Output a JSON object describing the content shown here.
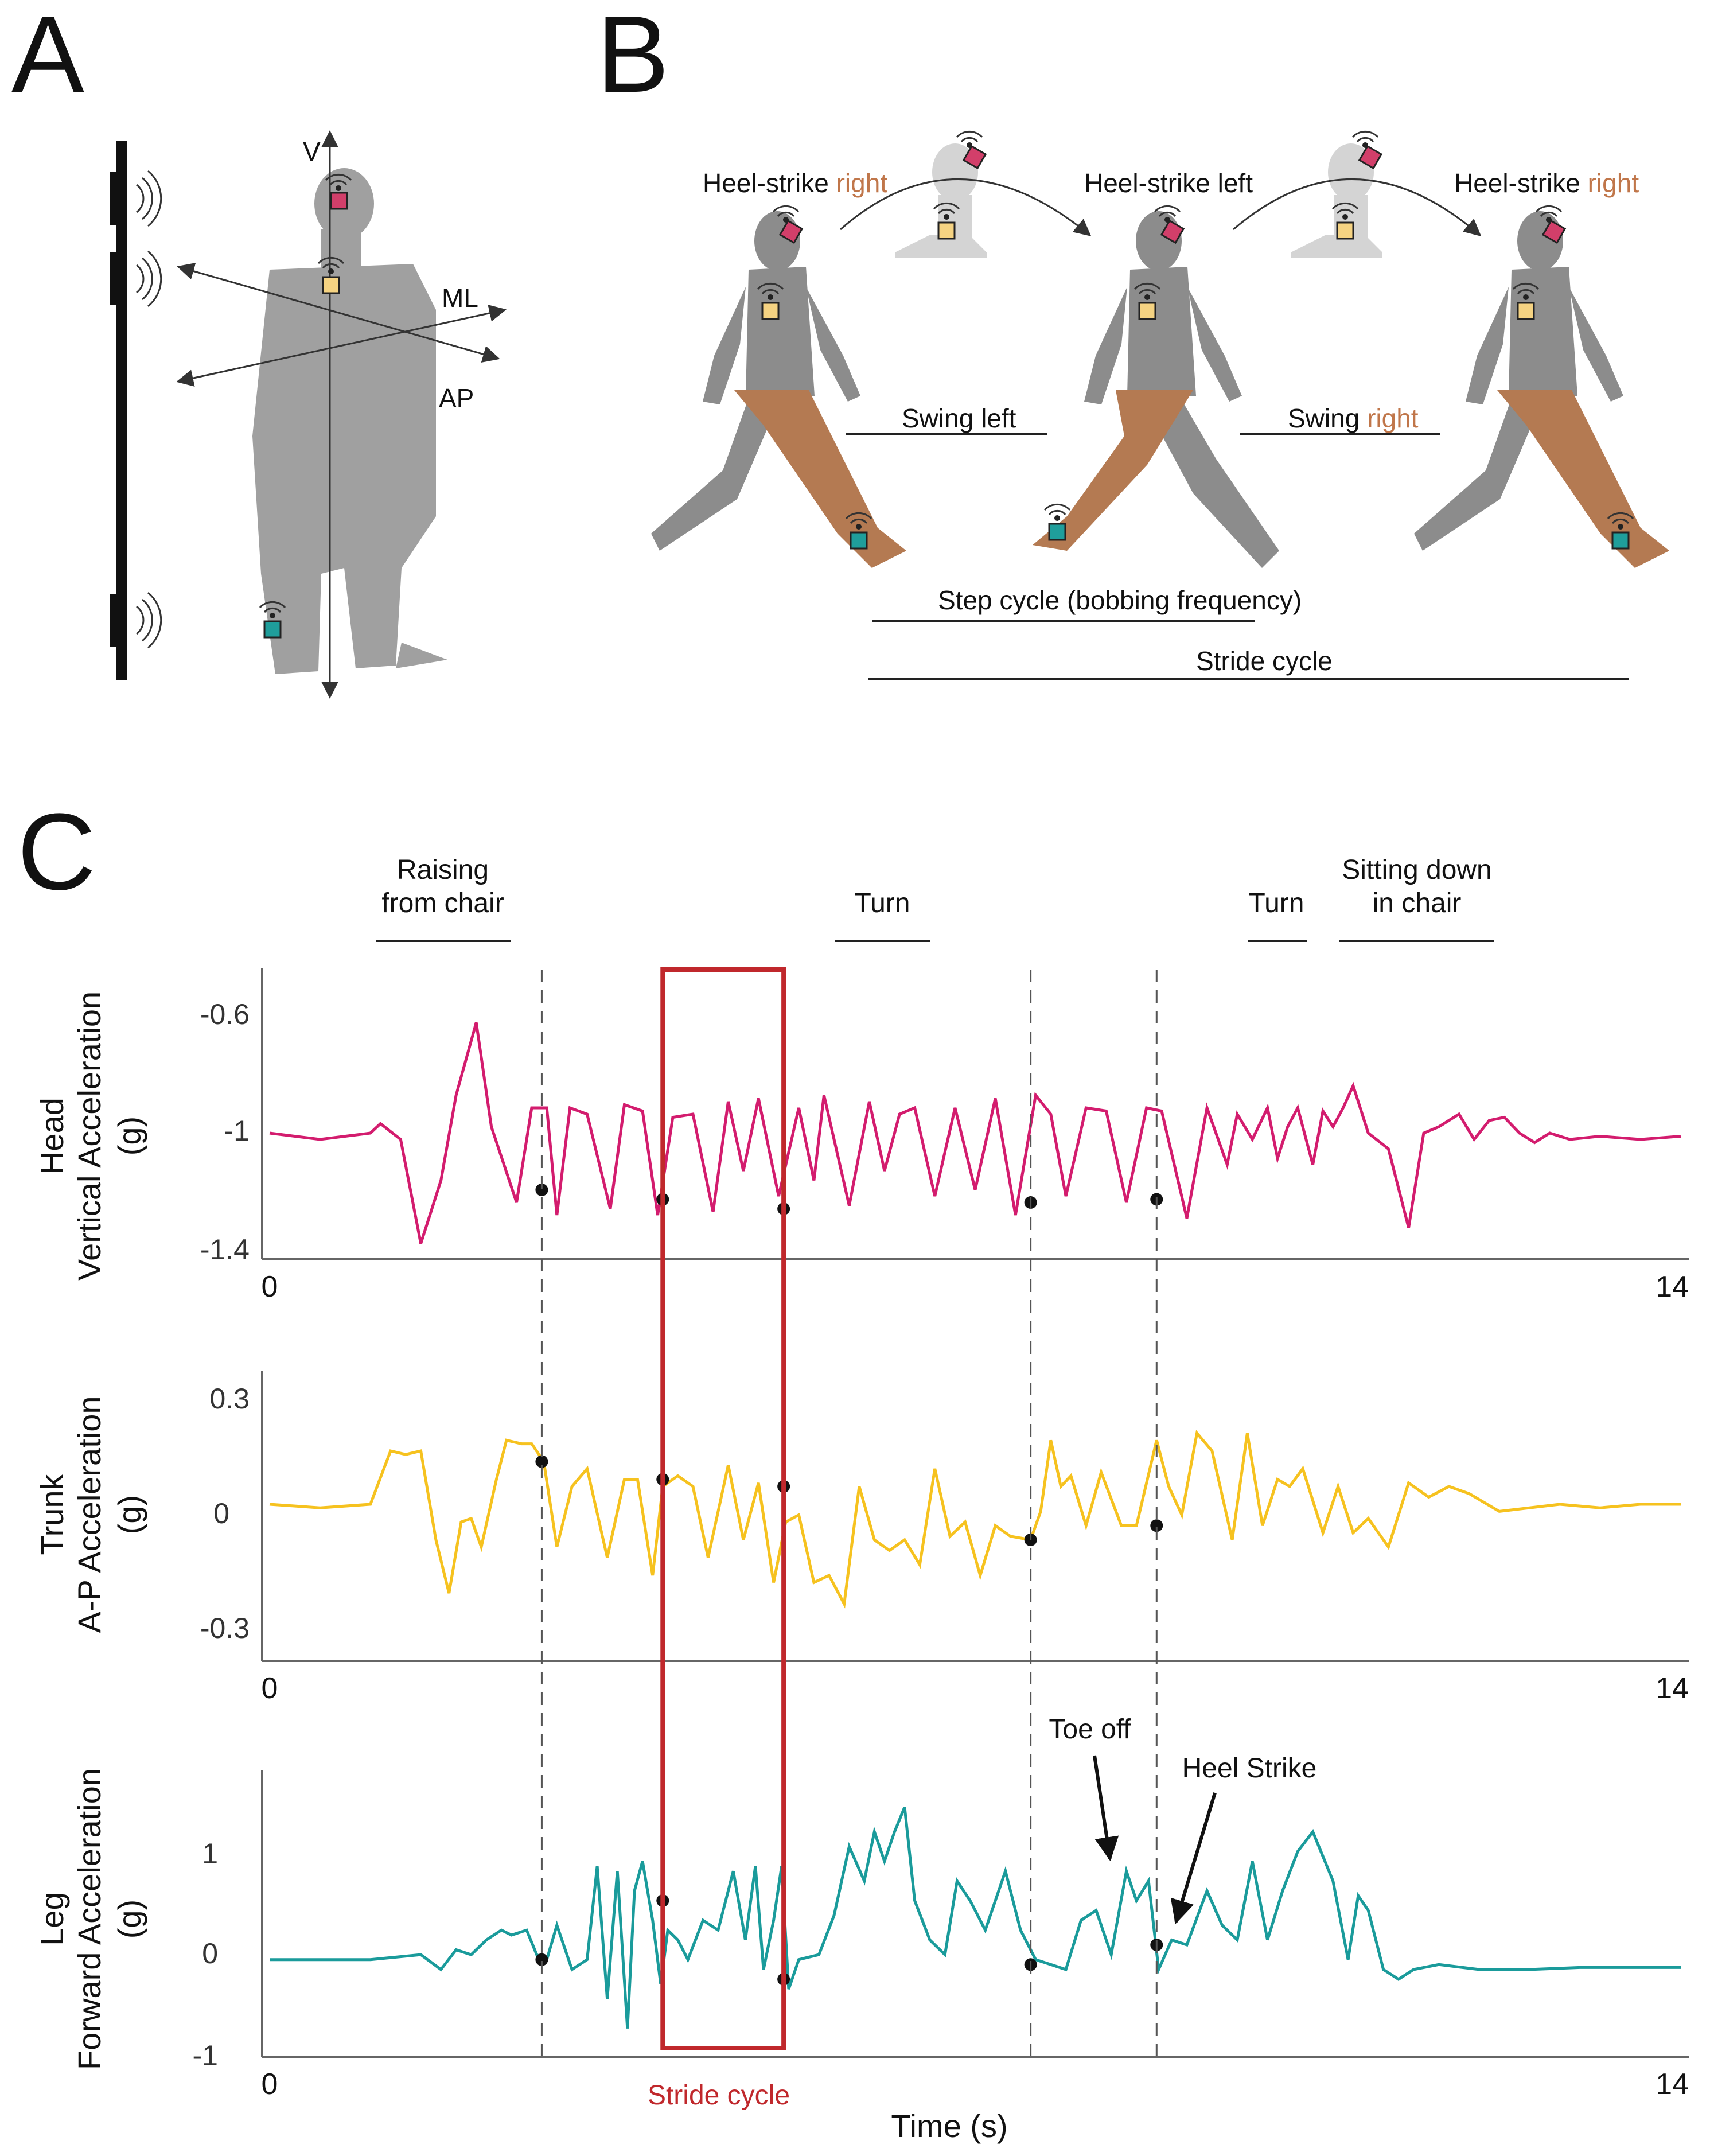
{
  "panels": {
    "a": "A",
    "b": "B",
    "c": "C"
  },
  "panel_a": {
    "axis_v": "V",
    "axis_ml": "ML",
    "axis_ap": "AP"
  },
  "panel_b": {
    "heel_strike_right_1": "Heel-strike ",
    "right_word_1": "right",
    "heel_strike_left": "Heel-strike left",
    "heel_strike_right_2": "Heel-strike ",
    "right_word_2": "right",
    "swing_left": "Swing left",
    "swing_right_prefix": "Swing ",
    "swing_right_word": "right",
    "step_cycle": "Step cycle (bobbing frequency)",
    "stride_cycle": "Stride cycle"
  },
  "annotations": {
    "raising_1": "Raising",
    "raising_2": "from chair",
    "turn_1": "Turn",
    "turn_2": "Turn",
    "sitting_1": "Sitting down",
    "sitting_2": "in chair",
    "toe_off": "Toe off",
    "heel_strike": "Heel Strike",
    "stride_cycle_box": "Stride cycle",
    "x_label": "Time (s)"
  },
  "colors": {
    "head": "#d31c6e",
    "trunk": "#f6c21f",
    "leg": "#1a9b9b",
    "stride_box": "#c0282c",
    "accent_text": "#c0764a",
    "sensor_head": "#d23f6a",
    "sensor_trunk": "#f5d382",
    "sensor_leg": "#1f9e9b"
  },
  "chart_data": [
    {
      "type": "line",
      "title": "Head",
      "ylabel": "Vertical Acceleration",
      "yunit": "(g)",
      "xlim": [
        0,
        14
      ],
      "ylim": [
        -1.4,
        -0.5
      ],
      "yticks": [
        "-0.6",
        "-1",
        "-1.4"
      ],
      "xticks": [
        "0",
        "14"
      ],
      "x": [
        0.0,
        0.5,
        1.0,
        1.1,
        1.3,
        1.5,
        1.7,
        1.85,
        2.05,
        2.2,
        2.45,
        2.6,
        2.75,
        2.85,
        2.98,
        3.15,
        3.38,
        3.52,
        3.7,
        3.85,
        4.0,
        4.2,
        4.4,
        4.55,
        4.7,
        4.85,
        5.05,
        5.25,
        5.4,
        5.5,
        5.75,
        5.95,
        6.1,
        6.25,
        6.4,
        6.6,
        6.8,
        7.0,
        7.2,
        7.4,
        7.6,
        7.75,
        7.9,
        8.1,
        8.3,
        8.5,
        8.7,
        8.85,
        9.1,
        9.3,
        9.5,
        9.6,
        9.75,
        9.9,
        10.0,
        10.1,
        10.2,
        10.35,
        10.45,
        10.55,
        10.65,
        10.75,
        10.9,
        11.1,
        11.3,
        11.45,
        11.6,
        11.8,
        11.95,
        12.1,
        12.25,
        12.4,
        12.55,
        12.7,
        12.9,
        13.2,
        13.6,
        14.0
      ],
      "values": [
        -1.0,
        -1.02,
        -1.0,
        -0.97,
        -1.02,
        -1.35,
        -1.15,
        -0.88,
        -0.65,
        -0.98,
        -1.22,
        -0.92,
        -0.92,
        -1.26,
        -0.92,
        -0.94,
        -1.24,
        -0.91,
        -0.93,
        -1.26,
        -0.95,
        -0.94,
        -1.25,
        -0.9,
        -1.12,
        -0.89,
        -1.2,
        -0.92,
        -1.15,
        -0.88,
        -1.23,
        -0.9,
        -1.12,
        -0.94,
        -0.92,
        -1.2,
        -0.92,
        -1.18,
        -0.89,
        -1.26,
        -0.88,
        -0.94,
        -1.2,
        -0.92,
        -0.93,
        -1.22,
        -0.92,
        -0.93,
        -1.27,
        -0.92,
        -1.1,
        -0.94,
        -1.02,
        -0.92,
        -1.08,
        -0.98,
        -0.92,
        -1.1,
        -0.93,
        -0.98,
        -0.92,
        -0.85,
        -1.0,
        -1.05,
        -1.3,
        -1.0,
        -0.98,
        -0.94,
        -1.02,
        -0.96,
        -0.95,
        -1.0,
        -1.03,
        -1.0,
        -1.02,
        -1.01,
        -1.02,
        -1.01
      ],
      "markers_x": [
        2.7,
        3.9,
        5.1,
        7.55,
        8.8
      ],
      "markers_y": [
        -1.18,
        -1.21,
        -1.24,
        -1.22,
        -1.21
      ]
    },
    {
      "type": "line",
      "title": "Trunk",
      "ylabel": "A-P Acceleration",
      "yunit": "(g)",
      "xlim": [
        0,
        14
      ],
      "ylim": [
        -0.4,
        0.35
      ],
      "yticks": [
        "0.3",
        "0",
        "-0.3"
      ],
      "xticks": [
        "0",
        "14"
      ],
      "x": [
        0.0,
        0.5,
        1.0,
        1.2,
        1.35,
        1.5,
        1.65,
        1.78,
        1.9,
        2.0,
        2.1,
        2.25,
        2.35,
        2.5,
        2.6,
        2.72,
        2.85,
        3.0,
        3.15,
        3.35,
        3.52,
        3.65,
        3.8,
        3.9,
        4.05,
        4.2,
        4.35,
        4.55,
        4.7,
        4.85,
        5.0,
        5.12,
        5.25,
        5.4,
        5.55,
        5.7,
        5.85,
        6.0,
        6.15,
        6.3,
        6.45,
        6.6,
        6.75,
        6.9,
        7.05,
        7.2,
        7.35,
        7.55,
        7.65,
        7.75,
        7.85,
        7.95,
        8.1,
        8.25,
        8.45,
        8.6,
        8.8,
        8.92,
        9.05,
        9.2,
        9.35,
        9.55,
        9.7,
        9.85,
        10.0,
        10.12,
        10.25,
        10.45,
        10.6,
        10.75,
        10.9,
        11.1,
        11.3,
        11.5,
        11.7,
        11.9,
        12.2,
        12.5,
        12.8,
        13.2,
        13.6,
        14.0
      ],
      "values": [
        0.0,
        -0.01,
        0.0,
        0.15,
        0.14,
        0.15,
        -0.1,
        -0.25,
        -0.05,
        -0.04,
        -0.12,
        0.07,
        0.18,
        0.17,
        0.17,
        0.12,
        -0.12,
        0.05,
        0.1,
        -0.15,
        0.07,
        0.07,
        -0.2,
        0.05,
        0.08,
        0.05,
        -0.15,
        0.11,
        -0.1,
        0.06,
        -0.22,
        -0.05,
        -0.03,
        -0.22,
        -0.2,
        -0.28,
        0.05,
        -0.1,
        -0.13,
        -0.1,
        -0.17,
        0.1,
        -0.09,
        -0.05,
        -0.2,
        -0.06,
        -0.09,
        -0.1,
        -0.02,
        0.18,
        0.05,
        0.08,
        -0.06,
        0.09,
        -0.06,
        -0.06,
        0.18,
        0.05,
        -0.03,
        0.2,
        0.15,
        -0.1,
        0.2,
        -0.06,
        0.07,
        0.05,
        0.1,
        -0.08,
        0.05,
        -0.08,
        -0.04,
        -0.12,
        0.06,
        0.02,
        0.05,
        0.03,
        -0.02,
        -0.01,
        0.0,
        -0.01,
        0.0,
        0.0
      ],
      "markers_x": [
        2.7,
        3.9,
        5.1,
        7.55,
        8.8
      ],
      "markers_y": [
        0.12,
        0.07,
        0.05,
        -0.1,
        -0.06
      ]
    },
    {
      "type": "line",
      "title": "Leg",
      "ylabel": "Forward Acceleration",
      "yunit": "(g)",
      "xlim": [
        0,
        14
      ],
      "ylim": [
        -1.0,
        1.8
      ],
      "yticks": [
        "1",
        "0",
        "-1"
      ],
      "xticks": [
        "0",
        "14"
      ],
      "xlabel": "Time (s)",
      "x": [
        0.0,
        1.0,
        1.5,
        1.7,
        1.85,
        2.0,
        2.15,
        2.3,
        2.4,
        2.55,
        2.65,
        2.75,
        2.85,
        3.0,
        3.15,
        3.25,
        3.35,
        3.45,
        3.55,
        3.62,
        3.7,
        3.8,
        3.88,
        3.95,
        4.05,
        4.15,
        4.3,
        4.45,
        4.6,
        4.72,
        4.82,
        4.9,
        5.0,
        5.08,
        5.15,
        5.25,
        5.45,
        5.6,
        5.75,
        5.9,
        6.0,
        6.1,
        6.2,
        6.3,
        6.4,
        6.55,
        6.7,
        6.82,
        6.95,
        7.1,
        7.3,
        7.45,
        7.6,
        7.75,
        7.9,
        8.05,
        8.2,
        8.35,
        8.5,
        8.6,
        8.72,
        8.82,
        8.95,
        9.1,
        9.3,
        9.45,
        9.6,
        9.75,
        9.9,
        10.05,
        10.2,
        10.35,
        10.55,
        10.7,
        10.8,
        10.9,
        11.05,
        11.2,
        11.35,
        11.6,
        12.0,
        12.5,
        13.0,
        14.0
      ],
      "values": [
        -0.1,
        -0.1,
        -0.05,
        -0.2,
        0.0,
        -0.05,
        0.1,
        0.2,
        0.15,
        0.2,
        -0.05,
        -0.1,
        0.25,
        -0.2,
        -0.1,
        0.85,
        -0.5,
        0.8,
        -0.8,
        0.6,
        0.9,
        0.3,
        -0.35,
        0.2,
        0.1,
        -0.1,
        0.3,
        0.2,
        0.8,
        0.1,
        0.85,
        -0.2,
        0.3,
        0.85,
        -0.4,
        -0.1,
        -0.05,
        0.35,
        1.05,
        0.7,
        1.2,
        0.9,
        1.2,
        1.45,
        0.5,
        0.1,
        -0.05,
        0.7,
        0.5,
        0.2,
        0.8,
        0.2,
        -0.1,
        -0.15,
        -0.2,
        0.3,
        0.4,
        -0.05,
        0.8,
        0.5,
        0.7,
        -0.2,
        0.1,
        0.05,
        0.6,
        0.25,
        0.1,
        0.9,
        0.1,
        0.6,
        1.0,
        1.2,
        0.7,
        -0.1,
        0.55,
        0.4,
        -0.2,
        -0.3,
        -0.2,
        -0.15,
        -0.2,
        -0.2,
        -0.18,
        -0.18
      ],
      "markers_x": [
        2.7,
        3.9,
        5.1,
        7.55,
        8.8
      ],
      "markers_y": [
        -0.1,
        0.5,
        -0.3,
        -0.15,
        0.05
      ]
    }
  ]
}
